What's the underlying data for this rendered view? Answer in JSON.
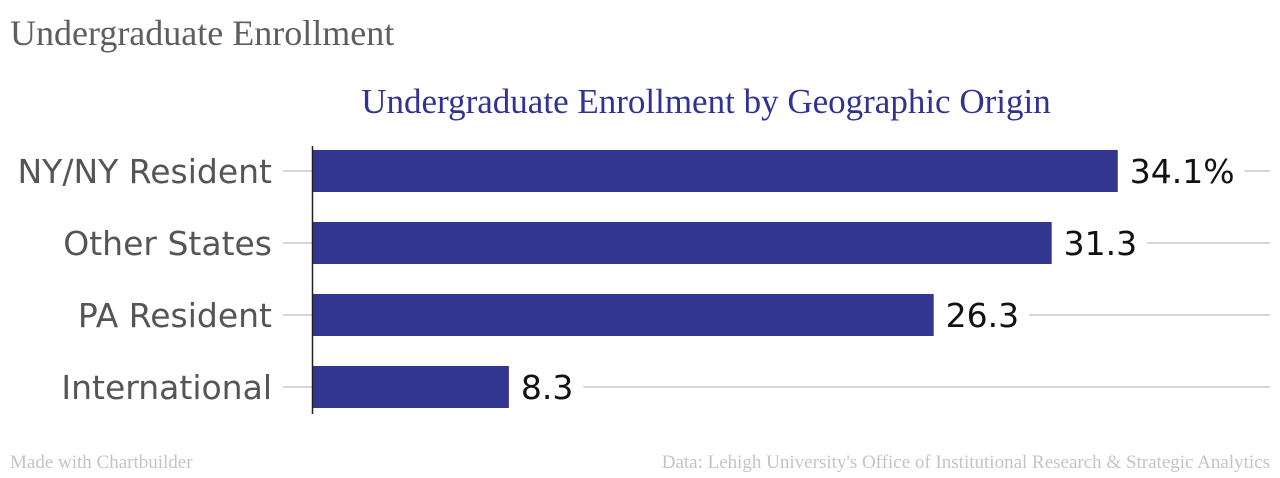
{
  "page": {
    "title": "Undergraduate Enrollment"
  },
  "chart_data": {
    "type": "bar",
    "orientation": "horizontal",
    "title": "Undergraduate Enrollment by Geographic Origin",
    "categories": [
      "NY/NY Resident",
      "Other States",
      "PA Resident",
      "International"
    ],
    "values": [
      34.1,
      31.3,
      26.3,
      8.3
    ],
    "value_labels": [
      "34.1%",
      "31.3",
      "26.3",
      "8.3"
    ],
    "xlim": [
      0,
      40
    ],
    "grid": true,
    "legend": "none",
    "bar_color": "#32368f"
  },
  "footer": {
    "left": "Made with Chartbuilder",
    "right": "Data: Lehigh University's Office of Institutional Research & Strategic Analytics"
  }
}
